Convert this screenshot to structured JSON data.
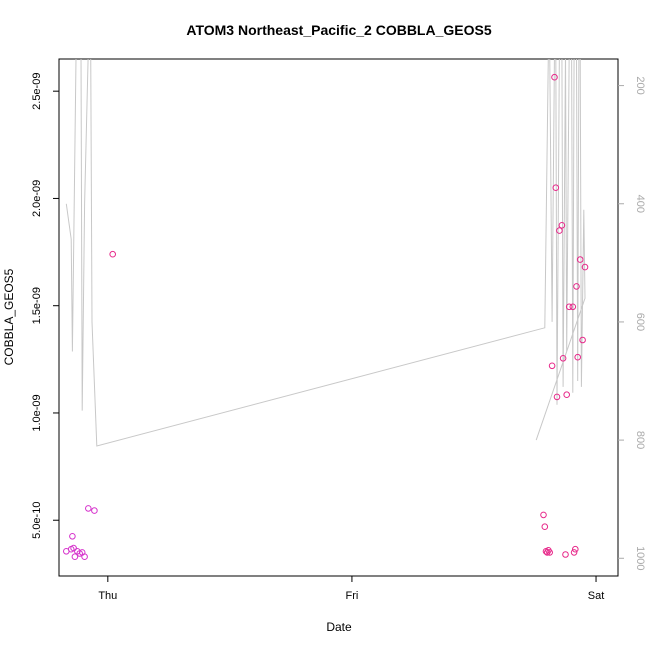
{
  "chart_data": {
    "type": "scatter",
    "title": "ATOM3 Northeast_Pacific_2 COBBLA_GEOS5",
    "xlabel": "Date",
    "ylabel": "COBBLA_GEOS5",
    "x_ticks": [
      {
        "label": "Thu",
        "value": 0.0
      },
      {
        "label": "Fri",
        "value": 1.0
      },
      {
        "label": "Sat",
        "value": 2.0
      }
    ],
    "xlim": [
      -0.2,
      2.09
    ],
    "ylim": [
      2.4e-10,
      2.65e-09
    ],
    "y_ticks": [
      {
        "label": "5.0e-10",
        "value": 5e-10
      },
      {
        "label": "1.0e-09",
        "value": 1e-09
      },
      {
        "label": "1.5e-09",
        "value": 1.5e-09
      },
      {
        "label": "2.0e-09",
        "value": 2e-09
      },
      {
        "label": "2.5e-09",
        "value": 2.5e-09
      }
    ],
    "y2_ticks": [
      {
        "label": "200",
        "value": 200
      },
      {
        "label": "400",
        "value": 400
      },
      {
        "label": "600",
        "value": 600
      },
      {
        "label": "800",
        "value": 800
      },
      {
        "label": "1000",
        "value": 1000
      }
    ],
    "y2lim": [
      1030,
      155
    ],
    "y2_reversed": true,
    "colors": {
      "points": "#e7298a",
      "points_alt": "#d633cc",
      "pressure_line": "#c8c8c8",
      "axis": "#000000",
      "right_axis": "#aaaaaa"
    },
    "series": [
      {
        "values": [
          [
            -0.17,
            3.55e-10
          ],
          [
            -0.15,
            3.65e-10
          ],
          [
            -0.145,
            4.25e-10
          ],
          [
            -0.14,
            3.7e-10
          ],
          [
            -0.135,
            3.3e-10
          ],
          [
            -0.125,
            3.55e-10
          ],
          [
            -0.115,
            3.45e-10
          ],
          [
            -0.105,
            3.5e-10
          ],
          [
            -0.095,
            3.3e-10
          ],
          [
            -0.08,
            5.55e-10
          ],
          [
            -0.055,
            5.45e-10
          ],
          [
            0.02,
            1.74e-09
          ],
          [
            1.785,
            5.25e-10
          ],
          [
            1.79,
            4.7e-10
          ],
          [
            1.795,
            3.55e-10
          ],
          [
            1.8,
            3.5e-10
          ],
          [
            1.805,
            3.6e-10
          ],
          [
            1.81,
            3.5e-10
          ],
          [
            1.82,
            1.22e-09
          ],
          [
            1.83,
            2.565e-09
          ],
          [
            1.835,
            2.05e-09
          ],
          [
            1.84,
            1.075e-09
          ],
          [
            1.85,
            1.85e-09
          ],
          [
            1.86,
            1.875e-09
          ],
          [
            1.865,
            1.255e-09
          ],
          [
            1.875,
            3.4e-10
          ],
          [
            1.88,
            1.085e-09
          ],
          [
            1.89,
            1.495e-09
          ],
          [
            1.905,
            1.495e-09
          ],
          [
            1.91,
            3.5e-10
          ],
          [
            1.915,
            3.65e-10
          ],
          [
            1.92,
            1.59e-09
          ],
          [
            1.925,
            1.26e-09
          ],
          [
            1.935,
            1.715e-09
          ],
          [
            1.945,
            1.34e-09
          ],
          [
            1.955,
            1.68e-09
          ]
        ]
      }
    ],
    "pressure_line": [
      [
        -0.17,
        400
      ],
      [
        -0.15,
        460
      ],
      [
        -0.145,
        650
      ],
      [
        -0.13,
        140
      ],
      [
        -0.11,
        140
      ],
      [
        -0.105,
        750
      ],
      [
        -0.095,
        400
      ],
      [
        -0.08,
        140
      ],
      [
        -0.07,
        140
      ],
      [
        -0.065,
        600
      ],
      [
        -0.045,
        810
      ],
      [
        1.79,
        610
      ],
      [
        1.805,
        140
      ],
      [
        1.81,
        140
      ],
      [
        1.82,
        600
      ],
      [
        1.83,
        140
      ],
      [
        1.835,
        140
      ],
      [
        1.84,
        740
      ],
      [
        1.85,
        140
      ],
      [
        1.86,
        140
      ],
      [
        1.865,
        710
      ],
      [
        1.875,
        140
      ],
      [
        1.88,
        650
      ],
      [
        1.89,
        140
      ],
      [
        1.9,
        140
      ],
      [
        1.905,
        720
      ],
      [
        1.91,
        140
      ],
      [
        1.92,
        140
      ],
      [
        1.925,
        700
      ],
      [
        1.93,
        140
      ],
      [
        1.935,
        140
      ],
      [
        1.94,
        710
      ],
      [
        1.95,
        410
      ],
      [
        1.955,
        560
      ],
      [
        1.755,
        800
      ]
    ]
  }
}
